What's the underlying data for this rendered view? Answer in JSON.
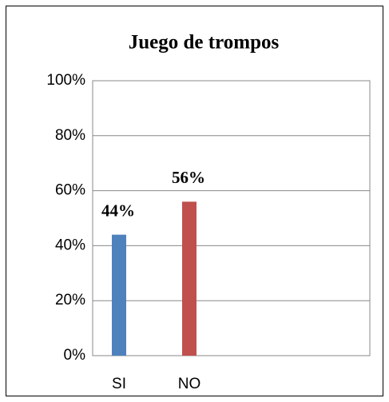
{
  "chart_data": {
    "type": "bar",
    "title": "Juego de trompos",
    "categories": [
      "SI",
      "NO"
    ],
    "values": [
      44,
      56
    ],
    "value_labels": [
      "44%",
      "56%"
    ],
    "colors": [
      "#4f81bd",
      "#c0504d"
    ],
    "ylim": [
      0,
      100
    ],
    "yticks": [
      {
        "value": 0,
        "label": "0%"
      },
      {
        "value": 20,
        "label": "20%"
      },
      {
        "value": 40,
        "label": "40%"
      },
      {
        "value": 60,
        "label": "60%"
      },
      {
        "value": 80,
        "label": "80%"
      },
      {
        "value": 100,
        "label": "100%"
      }
    ],
    "grid": true
  }
}
